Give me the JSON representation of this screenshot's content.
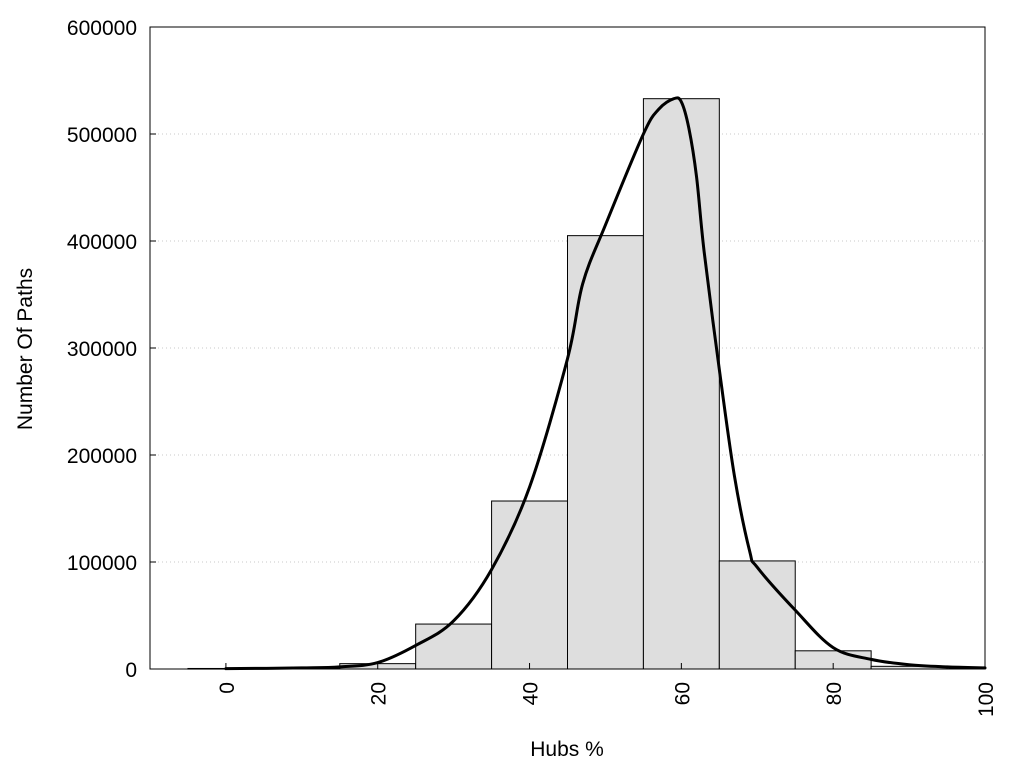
{
  "chart_data": {
    "type": "bar",
    "title": "",
    "xlabel": "Hubs %",
    "ylabel": "Number Of Paths",
    "xlim": [
      -10,
      100
    ],
    "ylim": [
      0,
      600000
    ],
    "x_ticks": [
      "0",
      "20",
      "40",
      "60",
      "80",
      "100"
    ],
    "y_ticks": [
      "0",
      "100000",
      "200000",
      "300000",
      "400000",
      "500000",
      "600000"
    ],
    "grid": "horizontal dotted",
    "legend": "none",
    "bar_width": 10,
    "bars": [
      {
        "x": 0,
        "value": 500
      },
      {
        "x": 10,
        "value": 1200
      },
      {
        "x": 20,
        "value": 5000
      },
      {
        "x": 30,
        "value": 42000
      },
      {
        "x": 40,
        "value": 157000
      },
      {
        "x": 50,
        "value": 405000
      },
      {
        "x": 60,
        "value": 533000
      },
      {
        "x": 70,
        "value": 101000
      },
      {
        "x": 80,
        "value": 17000
      },
      {
        "x": 90,
        "value": 2500
      }
    ],
    "curve": {
      "x": [
        0,
        10,
        15,
        20,
        25,
        30,
        35,
        40,
        45,
        47,
        50,
        55,
        57,
        59,
        60,
        61,
        62,
        63,
        65,
        67,
        69,
        70,
        75,
        80,
        85,
        90,
        95,
        100
      ],
      "y": [
        300,
        1000,
        2000,
        6000,
        22000,
        45000,
        93000,
        170000,
        290000,
        360000,
        415000,
        500000,
        523000,
        533000,
        530000,
        505000,
        460000,
        390000,
        280000,
        180000,
        110000,
        95000,
        55000,
        20000,
        9000,
        4000,
        2000,
        1000
      ]
    },
    "colors": {
      "bar_fill": "#dedede",
      "bar_stroke": "#000000",
      "curve": "#000000",
      "grid": "#c8c8c8"
    }
  }
}
